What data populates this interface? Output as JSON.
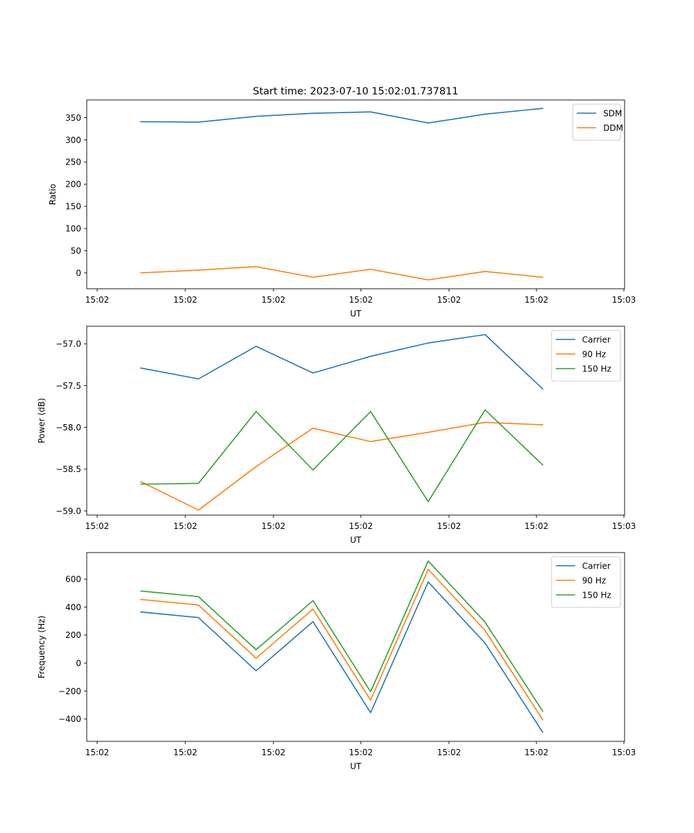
{
  "figure_title": "Start time: 2023-07-10 15:02:01.737811",
  "chart_data": [
    {
      "type": "line",
      "title": "Start time: 2023-07-10 15:02:01.737811",
      "xlabel": "UT",
      "ylabel": "Ratio",
      "x_tick_labels": [
        "15:02",
        "15:02",
        "15:02",
        "15:02",
        "15:02",
        "15:02",
        "15:03"
      ],
      "y_ticks": [
        0,
        50,
        100,
        150,
        200,
        250,
        300,
        350
      ],
      "y_tick_labels": [
        "0",
        "50",
        "100",
        "150",
        "200",
        "250",
        "300",
        "350"
      ],
      "ylim": [
        -36,
        390
      ],
      "legend": "top-right",
      "series": [
        {
          "name": "SDM",
          "color": "#1f77b4",
          "values": [
            341,
            340,
            353,
            360,
            363,
            338,
            358,
            371
          ]
        },
        {
          "name": "DDM",
          "color": "#ff7f0e",
          "values": [
            0,
            6,
            14,
            -10,
            8,
            -16,
            3,
            -10
          ]
        }
      ]
    },
    {
      "type": "line",
      "title": "",
      "xlabel": "UT",
      "ylabel": "Power (dB)",
      "x_tick_labels": [
        "15:02",
        "15:02",
        "15:02",
        "15:02",
        "15:02",
        "15:02",
        "15:03"
      ],
      "y_ticks": [
        -59.0,
        -58.5,
        -58.0,
        -57.5,
        -57.0
      ],
      "y_tick_labels": [
        "−59.0",
        "−58.5",
        "−58.0",
        "−57.5",
        "−57.0"
      ],
      "ylim": [
        -59.05,
        -56.79
      ],
      "legend": "top-right",
      "series": [
        {
          "name": "Carrier",
          "color": "#1f77b4",
          "values": [
            -57.29,
            -57.42,
            -57.03,
            -57.35,
            -57.15,
            -56.99,
            -56.89,
            -57.54
          ]
        },
        {
          "name": "90 Hz",
          "color": "#ff7f0e",
          "values": [
            -58.65,
            -58.99,
            -58.47,
            -58.01,
            -58.17,
            -58.06,
            -57.94,
            -57.97
          ]
        },
        {
          "name": "150 Hz",
          "color": "#2ca02c",
          "values": [
            -58.68,
            -58.67,
            -57.81,
            -58.51,
            -57.81,
            -58.89,
            -57.79,
            -58.45
          ]
        }
      ]
    },
    {
      "type": "line",
      "title": "",
      "xlabel": "UT",
      "ylabel": "Frequency (Hz)",
      "x_tick_labels": [
        "15:02",
        "15:02",
        "15:02",
        "15:02",
        "15:02",
        "15:02",
        "15:03"
      ],
      "y_ticks": [
        -400,
        -200,
        0,
        200,
        400,
        600
      ],
      "y_tick_labels": [
        "−400",
        "−200",
        "0",
        "200",
        "400",
        "600"
      ],
      "ylim": [
        -560,
        790
      ],
      "legend": "top-right",
      "series": [
        {
          "name": "Carrier",
          "color": "#1f77b4",
          "values": [
            365,
            325,
            -55,
            296,
            -355,
            580,
            142,
            -495
          ]
        },
        {
          "name": "90 Hz",
          "color": "#ff7f0e",
          "values": [
            455,
            415,
            35,
            386,
            -265,
            670,
            232,
            -405
          ]
        },
        {
          "name": "150 Hz",
          "color": "#2ca02c",
          "values": [
            515,
            475,
            95,
            446,
            -205,
            730,
            292,
            -345
          ]
        }
      ]
    }
  ]
}
